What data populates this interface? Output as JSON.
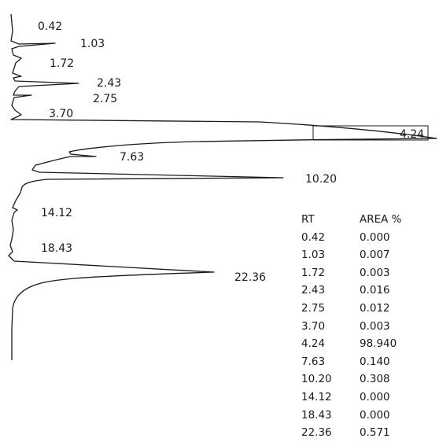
{
  "chart_data": {
    "type": "line",
    "title": "",
    "xlabel": "",
    "ylabel": "",
    "peak_labels": [
      "0.42",
      "1.03",
      "1.72",
      "2.43",
      "2.75",
      "3.70",
      "4.24",
      "7.63",
      "10.20",
      "14.12",
      "18.43",
      "22.36"
    ],
    "series": [
      {
        "x": [
          0.42,
          1.03,
          1.72,
          2.43,
          2.75,
          3.7,
          4.24,
          7.63,
          10.2,
          14.12,
          18.43,
          22.36
        ],
        "values": [
          0.0,
          0.007,
          0.003,
          0.016,
          0.012,
          0.003,
          98.94,
          0.14,
          0.308,
          0.0,
          0.0,
          0.571
        ]
      }
    ],
    "table": {
      "headers": [
        "RT",
        "AREA %"
      ],
      "rows": [
        [
          "0.42",
          "0.000"
        ],
        [
          "1.03",
          "0.007"
        ],
        [
          "1.72",
          "0.003"
        ],
        [
          "2.43",
          "0.016"
        ],
        [
          "2.75",
          "0.012"
        ],
        [
          "3.70",
          "0.003"
        ],
        [
          "4.24",
          "98.940"
        ],
        [
          "7.63",
          "0.140"
        ],
        [
          "10.20",
          "0.308"
        ],
        [
          "14.12",
          "0.000"
        ],
        [
          "18.43",
          "0.000"
        ],
        [
          "22.36",
          "0.571"
        ]
      ]
    }
  }
}
